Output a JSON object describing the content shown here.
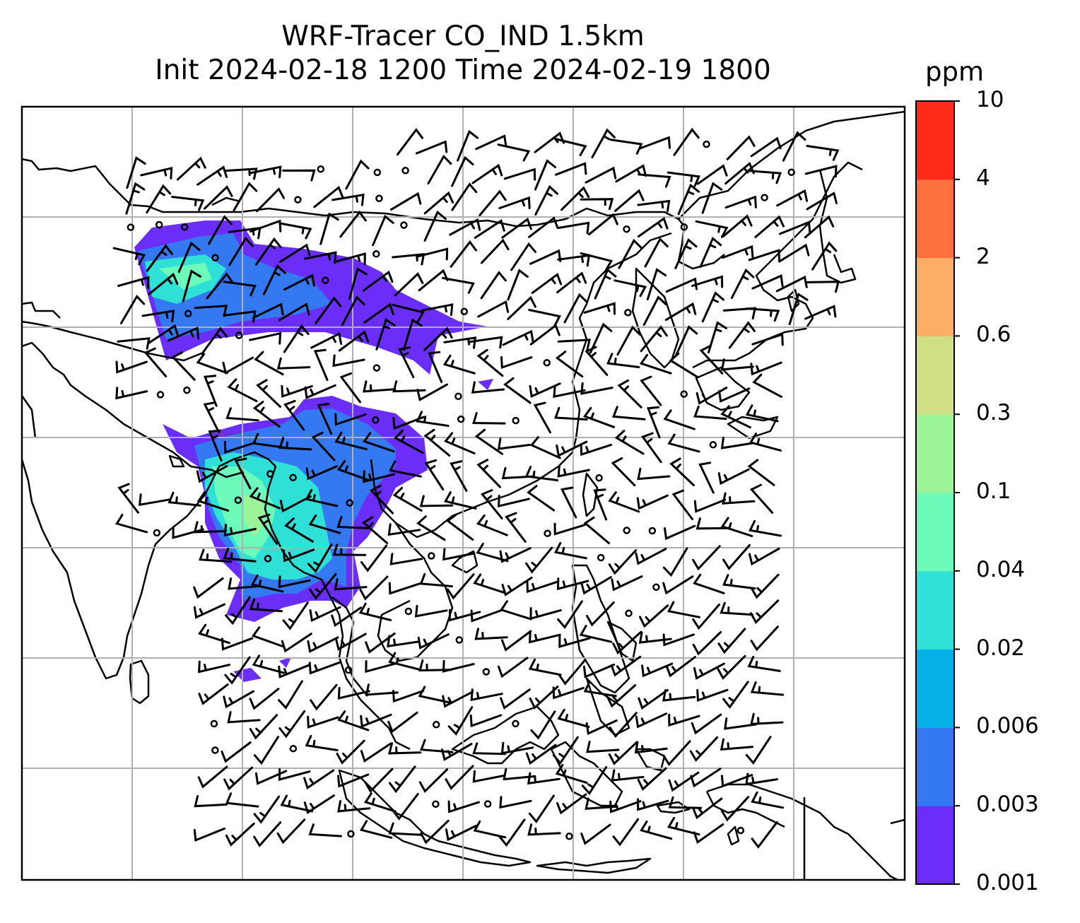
{
  "title": {
    "line1": "WRF-Tracer CO_IND 1.5km",
    "line2": "Init 2024-02-18 1200 Time 2024-02-19 1800"
  },
  "colorbar": {
    "unit": "ppm",
    "levels": [
      "0.001",
      "0.003",
      "0.006",
      "0.02",
      "0.04",
      "0.1",
      "0.3",
      "0.6",
      "2",
      "4",
      "10"
    ],
    "colors": [
      "#6a2ef8",
      "#3478f2",
      "#06b1e9",
      "#2ee0d6",
      "#6cfbbb",
      "#9bf597",
      "#d0de84",
      "#fcaf64",
      "#ff7240",
      "#ff2a17"
    ]
  },
  "map": {
    "coastline_color": "#000000",
    "gridline_color": "#b0b0b0",
    "plume_colors": [
      "#6a2ef8",
      "#3478f2",
      "#2ee0d6",
      "#6cfbbb",
      "#9bf597"
    ]
  }
}
